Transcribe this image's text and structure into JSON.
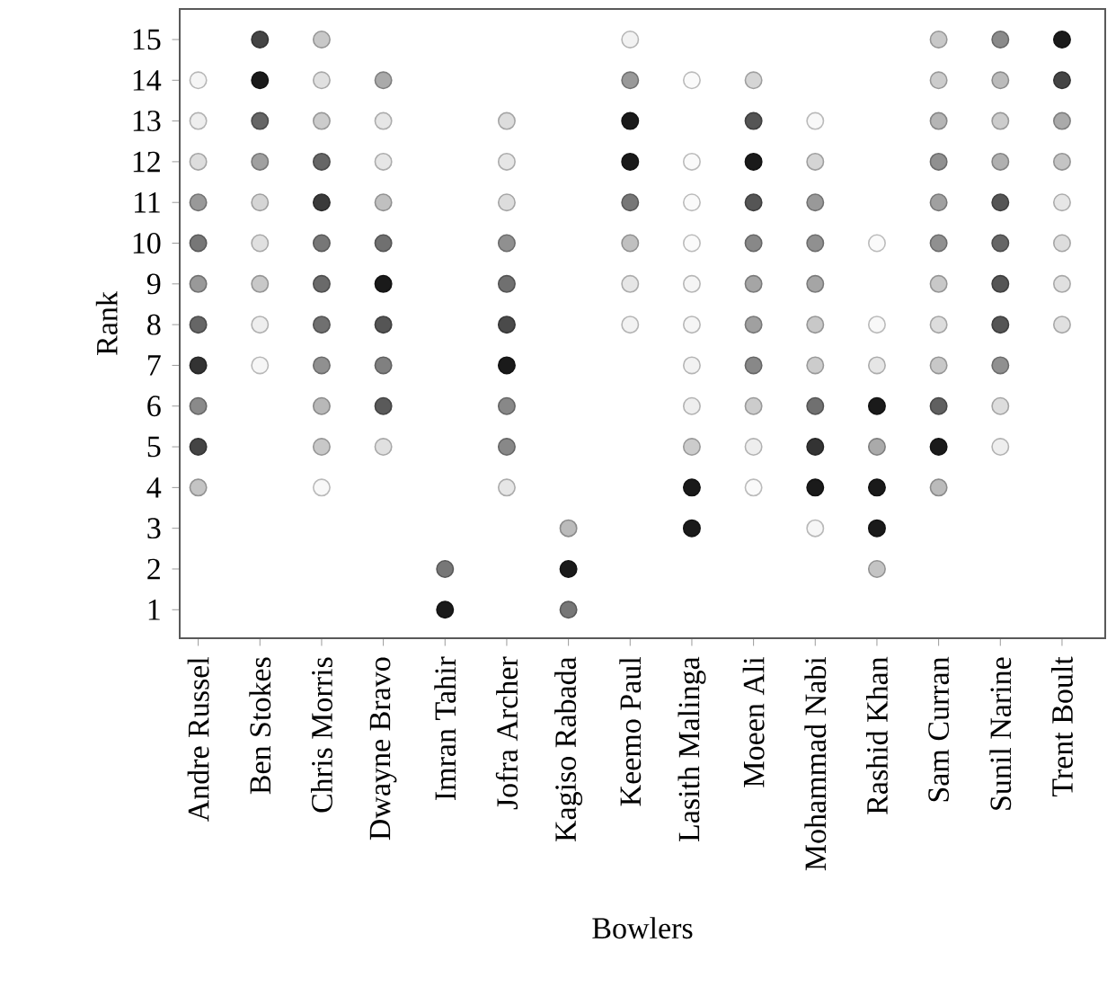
{
  "chart_data": {
    "type": "scatter",
    "xlabel": "Bowlers",
    "ylabel": "Rank",
    "categories": [
      "Andre Russel",
      "Ben Stokes",
      "Chris Morris",
      "Dwayne Bravo",
      "Imran Tahir",
      "Jofra Archer",
      "Kagiso Rabada",
      "Keemo Paul",
      "Lasith Malinga",
      "Moeen Ali",
      "Mohammad Nabi",
      "Rashid Khan",
      "Sam Curran",
      "Sunil Narine",
      "Trent Boult"
    ],
    "ylim": [
      0.3,
      15.75
    ],
    "yticks": [
      1,
      2,
      3,
      4,
      5,
      6,
      7,
      8,
      9,
      10,
      11,
      12,
      13,
      14,
      15
    ],
    "series": [
      {
        "values": [
          null,
          null,
          null,
          null,
          1,
          null,
          1,
          null,
          null,
          null,
          null,
          null,
          null,
          null,
          null
        ],
        "colors": [
          null,
          null,
          null,
          null,
          "#1a1a1a",
          null,
          "#777777",
          null,
          null,
          null,
          null,
          null,
          null,
          null,
          null
        ]
      },
      {
        "values": [
          null,
          null,
          null,
          null,
          2,
          null,
          2,
          null,
          null,
          null,
          null,
          2,
          null,
          null,
          null
        ],
        "colors": [
          null,
          null,
          null,
          null,
          "#777777",
          null,
          "#1a1a1a",
          null,
          null,
          null,
          null,
          "#c4c4c4",
          null,
          null,
          null
        ]
      },
      {
        "values": [
          null,
          null,
          null,
          null,
          null,
          null,
          3,
          null,
          3,
          null,
          3,
          3,
          null,
          null,
          null
        ],
        "colors": [
          null,
          null,
          null,
          null,
          null,
          null,
          "#bbbbbb",
          null,
          "#1a1a1a",
          null,
          "#f6f6f6",
          "#1a1a1a",
          null,
          null,
          null
        ]
      },
      {
        "values": [
          4,
          null,
          4,
          null,
          null,
          4,
          null,
          null,
          4,
          4,
          4,
          4,
          4,
          null,
          null
        ],
        "colors": [
          "#c4c4c4",
          null,
          "#f8f8f8",
          null,
          null,
          "#e6e6e6",
          null,
          null,
          "#1a1a1a",
          "#fafafa",
          "#1a1a1a",
          "#1a1a1a",
          "#bbbbbb",
          null,
          null
        ]
      },
      {
        "values": [
          5,
          null,
          5,
          5,
          null,
          5,
          null,
          null,
          5,
          5,
          5,
          5,
          5,
          5,
          null
        ],
        "colors": [
          "#444444",
          null,
          "#c8c8c8",
          "#e0e0e0",
          null,
          "#888888",
          null,
          null,
          "#cccccc",
          "#eeeeee",
          "#333333",
          "#aaaaaa",
          "#1a1a1a",
          "#eeeeee",
          null
        ]
      },
      {
        "values": [
          6,
          null,
          6,
          6,
          null,
          6,
          null,
          null,
          6,
          6,
          6,
          6,
          6,
          6,
          null
        ],
        "colors": [
          "#8a8a8a",
          null,
          "#b8b8b8",
          "#5a5a5a",
          null,
          "#888888",
          null,
          null,
          "#eeeeee",
          "#cccccc",
          "#707070",
          "#1a1a1a",
          "#606060",
          "#dddddd",
          null
        ]
      },
      {
        "values": [
          7,
          7,
          7,
          7,
          null,
          7,
          null,
          null,
          7,
          7,
          7,
          7,
          7,
          7,
          null
        ],
        "colors": [
          "#333333",
          "#f6f6f6",
          "#909090",
          "#808080",
          null,
          "#1a1a1a",
          null,
          null,
          "#f2f2f2",
          "#888888",
          "#cccccc",
          "#e6e6e6",
          "#c8c8c8",
          "#909090",
          null
        ]
      },
      {
        "values": [
          8,
          8,
          8,
          8,
          null,
          8,
          null,
          8,
          8,
          8,
          8,
          8,
          8,
          8,
          8
        ],
        "colors": [
          "#666666",
          "#eeeeee",
          "#707070",
          "#555555",
          null,
          "#4a4a4a",
          null,
          "#f2f2f2",
          "#f5f5f5",
          "#a0a0a0",
          "#c8c8c8",
          "#f8f8f8",
          "#dddddd",
          "#555555",
          "#e0e0e0"
        ]
      },
      {
        "values": [
          9,
          9,
          9,
          9,
          null,
          9,
          null,
          9,
          9,
          9,
          9,
          null,
          9,
          9,
          9
        ],
        "colors": [
          "#999999",
          "#c8c8c8",
          "#6a6a6a",
          "#1a1a1a",
          null,
          "#707070",
          null,
          "#e6e6e6",
          "#f5f5f5",
          "#a5a5a5",
          "#a5a5a5",
          null,
          "#c8c8c8",
          "#555555",
          "#e0e0e0"
        ]
      },
      {
        "values": [
          10,
          10,
          10,
          10,
          null,
          10,
          null,
          10,
          10,
          10,
          10,
          10,
          10,
          10,
          10
        ],
        "colors": [
          "#777777",
          "#e0e0e0",
          "#777777",
          "#707070",
          null,
          "#909090",
          null,
          "#c0c0c0",
          "#fafafa",
          "#888888",
          "#909090",
          "#fafafa",
          "#909090",
          "#666666",
          "#dddddd"
        ]
      },
      {
        "values": [
          11,
          11,
          11,
          11,
          null,
          11,
          null,
          11,
          11,
          11,
          11,
          null,
          11,
          11,
          11
        ],
        "colors": [
          "#999999",
          "#d5d5d5",
          "#3a3a3a",
          "#c0c0c0",
          null,
          "#dddddd",
          null,
          "#777777",
          "#fafafa",
          "#555555",
          "#999999",
          null,
          "#a0a0a0",
          "#555555",
          "#e6e6e6"
        ]
      },
      {
        "values": [
          12,
          12,
          12,
          12,
          null,
          12,
          null,
          12,
          12,
          12,
          12,
          null,
          12,
          12,
          12
        ],
        "colors": [
          "#dddddd",
          "#a0a0a0",
          "#666666",
          "#e6e6e6",
          null,
          "#e6e6e6",
          null,
          "#1a1a1a",
          "#fafafa",
          "#1a1a1a",
          "#d5d5d5",
          null,
          "#909090",
          "#b0b0b0",
          "#c4c4c4"
        ]
      },
      {
        "values": [
          13,
          13,
          13,
          13,
          null,
          13,
          null,
          13,
          null,
          13,
          13,
          null,
          13,
          13,
          13
        ],
        "colors": [
          "#eeeeee",
          "#666666",
          "#cccccc",
          "#e6e6e6",
          null,
          "#dddddd",
          null,
          "#1a1a1a",
          null,
          "#555555",
          "#f8f8f8",
          null,
          "#b5b5b5",
          "#cccccc",
          "#aaaaaa"
        ]
      },
      {
        "values": [
          14,
          14,
          14,
          14,
          null,
          null,
          null,
          14,
          14,
          14,
          null,
          null,
          14,
          14,
          14
        ],
        "colors": [
          "#f5f5f5",
          "#1a1a1a",
          "#e0e0e0",
          "#aaaaaa",
          null,
          null,
          null,
          "#999999",
          "#fafafa",
          "#d5d5d5",
          null,
          null,
          "#cccccc",
          "#bbbbbb",
          "#444444"
        ]
      },
      {
        "values": [
          null,
          15,
          15,
          null,
          null,
          null,
          null,
          15,
          null,
          null,
          null,
          null,
          15,
          15,
          15
        ],
        "colors": [
          null,
          "#444444",
          "#c8c8c8",
          null,
          null,
          null,
          null,
          "#f2f2f2",
          null,
          null,
          null,
          null,
          "#c8c8c8",
          "#8a8a8a",
          "#1a1a1a"
        ]
      }
    ]
  }
}
